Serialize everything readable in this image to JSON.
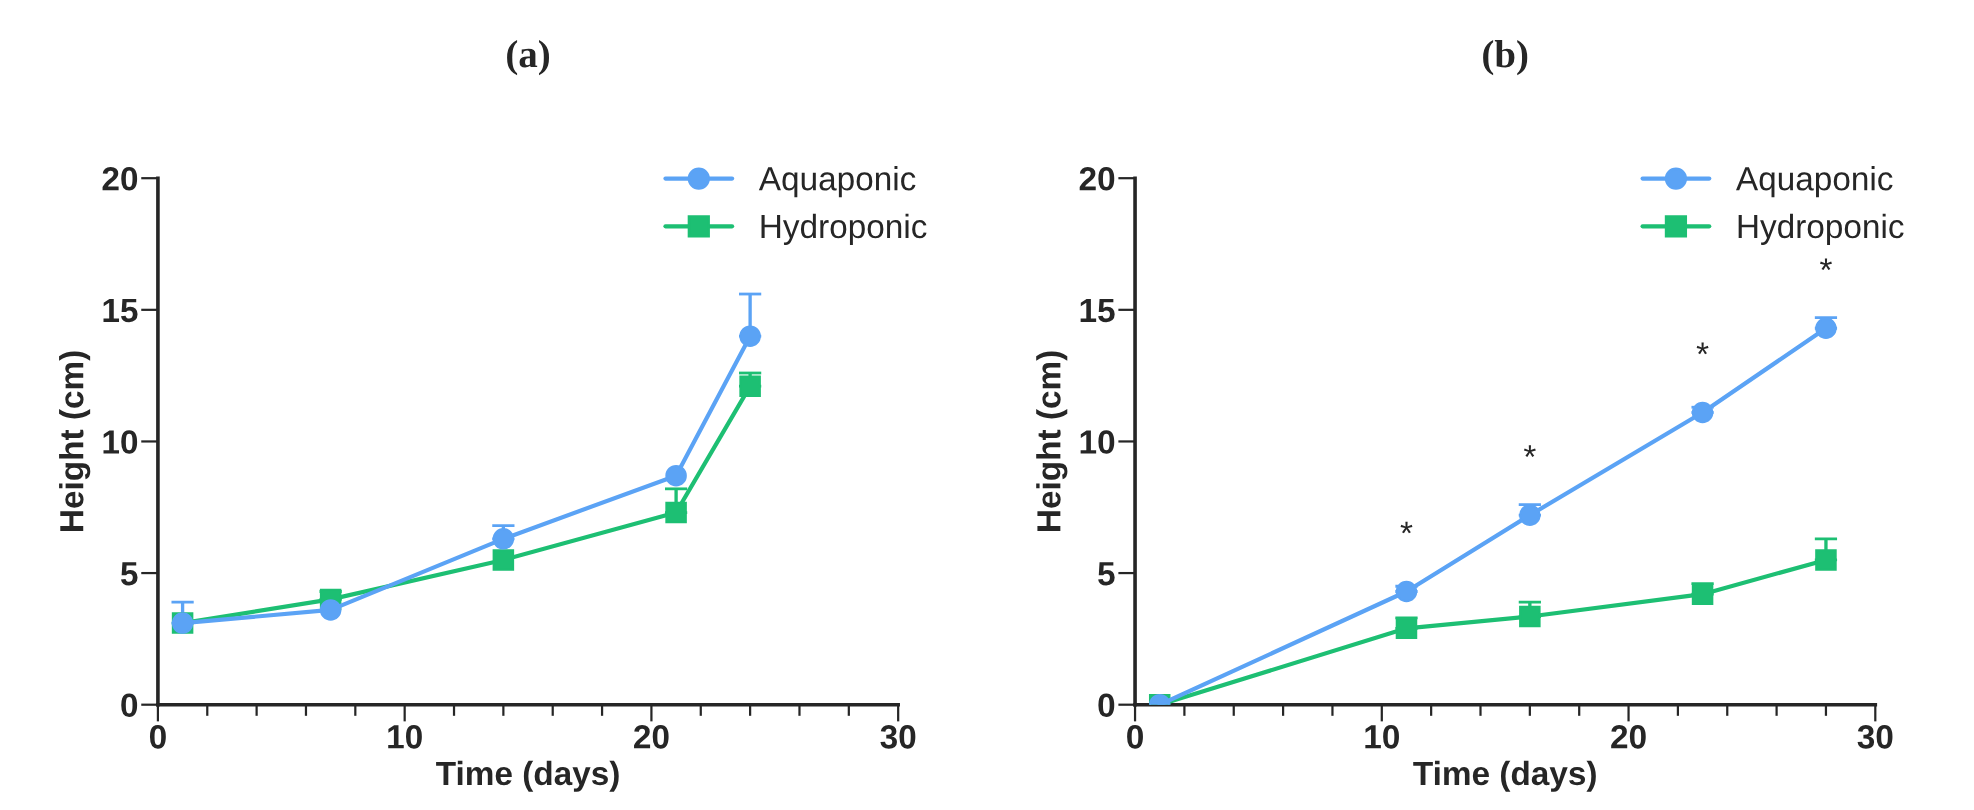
{
  "chart_data": [
    {
      "type": "line",
      "title": "(a)",
      "xlabel": "Time (days)",
      "ylabel": "Height (cm)",
      "xlim": [
        0,
        30
      ],
      "ylim": [
        0,
        20
      ],
      "xticks": [
        0,
        {
          "value": 2,
          "label": null
        },
        {
          "value": 4,
          "label": null
        },
        {
          "value": 6,
          "label": null
        },
        {
          "value": 8,
          "label": null
        },
        10,
        {
          "value": 12,
          "label": null
        },
        {
          "value": 14,
          "label": null
        },
        {
          "value": 16,
          "label": null
        },
        {
          "value": 18,
          "label": null
        },
        20,
        {
          "value": 22,
          "label": null
        },
        {
          "value": 24,
          "label": null
        },
        {
          "value": 26,
          "label": null
        },
        {
          "value": 28,
          "label": null
        },
        30
      ],
      "yticks": [
        0,
        5,
        10,
        15,
        20
      ],
      "grid": false,
      "legend": "top right",
      "series": [
        {
          "name": "Aquaponic",
          "color": "#5ba3f5",
          "marker": "circle",
          "x": [
            1,
            7,
            14,
            21,
            24
          ],
          "values": [
            3.1,
            3.6,
            6.3,
            8.7,
            14.0
          ],
          "errors": [
            [
              3.1,
              3.9
            ],
            null,
            [
              6.3,
              6.8
            ],
            null,
            [
              14.0,
              15.6
            ]
          ]
        },
        {
          "name": "Hydroponic",
          "color": "#1dbf73",
          "marker": "square",
          "x": [
            1,
            7,
            14,
            21,
            24
          ],
          "values": [
            3.1,
            4.0,
            5.5,
            7.3,
            12.1
          ],
          "errors": [
            null,
            [
              4.0,
              4.3
            ],
            null,
            [
              7.3,
              8.2
            ],
            [
              12.1,
              12.6
            ]
          ]
        }
      ]
    },
    {
      "type": "line",
      "title": "(b)",
      "xlabel": "Time (days)",
      "ylabel": "Height (cm)",
      "xlim": [
        0,
        30
      ],
      "ylim": [
        0,
        20
      ],
      "xticks": [
        0,
        {
          "value": 2,
          "label": null
        },
        {
          "value": 4,
          "label": null
        },
        {
          "value": 6,
          "label": null
        },
        {
          "value": 8,
          "label": null
        },
        10,
        {
          "value": 12,
          "label": null
        },
        {
          "value": 14,
          "label": null
        },
        {
          "value": 16,
          "label": null
        },
        {
          "value": 18,
          "label": null
        },
        20,
        {
          "value": 22,
          "label": null
        },
        {
          "value": 24,
          "label": null
        },
        {
          "value": 26,
          "label": null
        },
        {
          "value": 28,
          "label": null
        },
        30
      ],
      "yticks": [
        0,
        5,
        10,
        15,
        20
      ],
      "grid": false,
      "legend": "top right",
      "annotations": [
        {
          "text": "*",
          "x": 11,
          "y": 4.3
        },
        {
          "text": "*",
          "x": 16,
          "y": 7.2
        },
        {
          "text": "*",
          "x": 23,
          "y": 11.1
        },
        {
          "text": "*",
          "x": 28,
          "y": 14.3
        }
      ],
      "series": [
        {
          "name": "Aquaponic",
          "color": "#5ba3f5",
          "marker": "circle",
          "x": [
            1,
            11,
            16,
            23,
            28
          ],
          "values": [
            0,
            4.3,
            7.2,
            11.1,
            14.3
          ],
          "errors": [
            null,
            [
              4.3,
              4.5
            ],
            [
              7.2,
              7.6
            ],
            [
              11.1,
              11.3
            ],
            [
              14.3,
              14.7
            ]
          ]
        },
        {
          "name": "Hydroponic",
          "color": "#1dbf73",
          "marker": "square",
          "x": [
            1,
            11,
            16,
            23,
            28
          ],
          "values": [
            0,
            2.9,
            3.35,
            4.2,
            5.5
          ],
          "errors": [
            null,
            [
              2.9,
              3.3
            ],
            [
              3.35,
              3.9
            ],
            [
              4.2,
              4.6
            ],
            [
              5.5,
              6.3
            ]
          ]
        }
      ]
    }
  ]
}
